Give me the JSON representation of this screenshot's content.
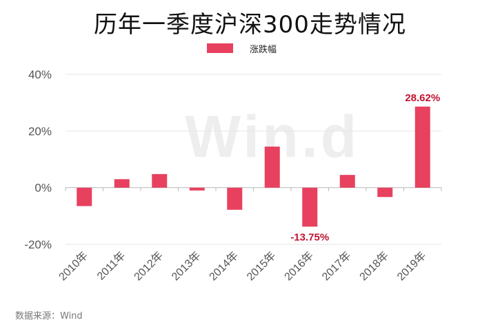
{
  "title": "历年一季度沪深300走势情况",
  "legend": {
    "label": "涨跌幅"
  },
  "watermark": "Win.d",
  "source": "数据来源：Wind",
  "colors": {
    "bar": "#e8415f",
    "annotation": "#c0122f",
    "grid": "#e6e6e6",
    "axis": "#b8b8b8",
    "tick": "#555555"
  },
  "chart_data": {
    "type": "bar",
    "title": "历年一季度沪深300走势情况",
    "categories": [
      "2010年",
      "2011年",
      "2012年",
      "2013年",
      "2014年",
      "2015年",
      "2016年",
      "2017年",
      "2018年",
      "2019年"
    ],
    "series": [
      {
        "name": "涨跌幅",
        "values": [
          -6.5,
          3.0,
          4.8,
          -1.0,
          -7.8,
          14.5,
          -13.75,
          4.5,
          -3.3,
          28.62
        ]
      }
    ],
    "yticks": [
      "-20%",
      "0%",
      "20%",
      "40%"
    ],
    "ytick_values": [
      -20,
      0,
      20,
      40
    ],
    "ylim": [
      -20,
      40
    ],
    "grid": true,
    "legend_position": "top-center",
    "annotations": [
      {
        "category": "2016年",
        "text": "-13.75%"
      },
      {
        "category": "2019年",
        "text": "28.62%"
      }
    ]
  }
}
